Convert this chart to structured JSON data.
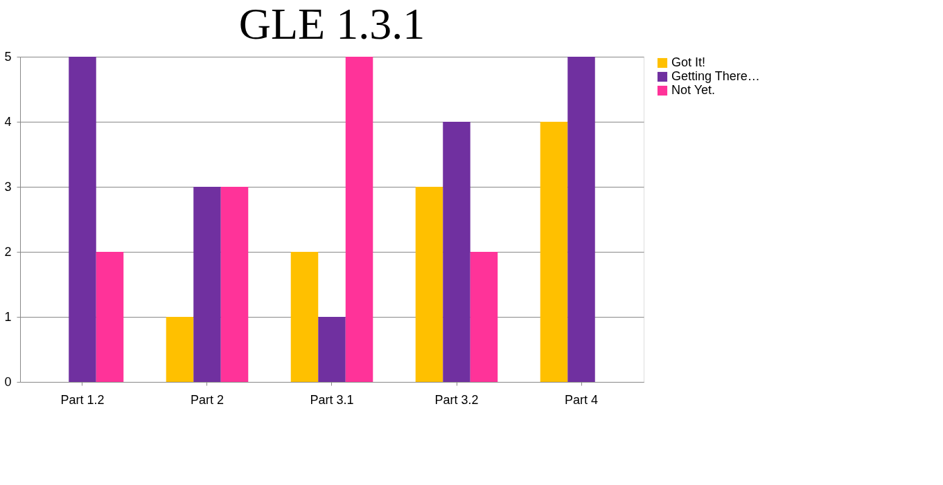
{
  "chart_data": {
    "type": "bar",
    "title": "GLE 1.3.1",
    "categories": [
      "Part 1.2",
      "Part 2",
      "Part 3.1",
      "Part 3.2",
      "Part 4"
    ],
    "series": [
      {
        "name": "Got It!",
        "color": "#ffc000",
        "values": [
          null,
          1,
          2,
          3,
          4
        ]
      },
      {
        "name": "Getting There…",
        "color": "#7030a0",
        "values": [
          5,
          3,
          1,
          4,
          5
        ]
      },
      {
        "name": "Not Yet.",
        "color": "#ff3399",
        "values": [
          2,
          3,
          5,
          2,
          null
        ]
      }
    ],
    "ylim": [
      0,
      5
    ],
    "yticks": [
      0,
      1,
      2,
      3,
      4,
      5
    ],
    "grid": "y",
    "legend": "right"
  }
}
